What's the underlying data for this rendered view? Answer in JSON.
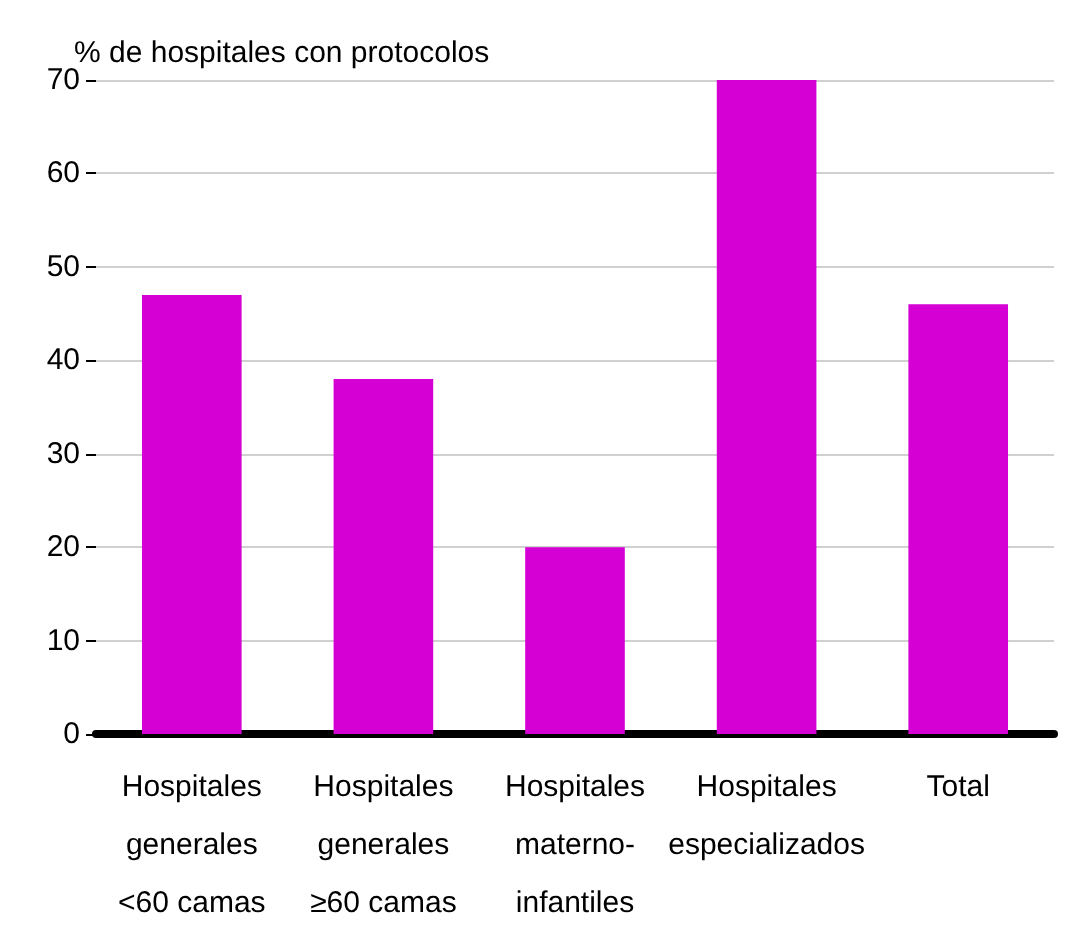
{
  "chart_data": {
    "type": "bar",
    "ylabel": "% de hospitales con protocolos",
    "categories": [
      "Hospitales\ngenerales\n<60 camas",
      "Hospitales\ngenerales\n≥60 camas",
      "Hospitales\nmaterno-\ninfantiles",
      "Hospitales\nespecializados",
      "Total"
    ],
    "values": [
      47,
      38,
      20,
      70,
      46
    ],
    "color": "#d400d4",
    "ylim": [
      0,
      70
    ],
    "yticks": [
      0,
      10,
      20,
      30,
      40,
      50,
      60,
      70
    ],
    "grid": "y"
  }
}
